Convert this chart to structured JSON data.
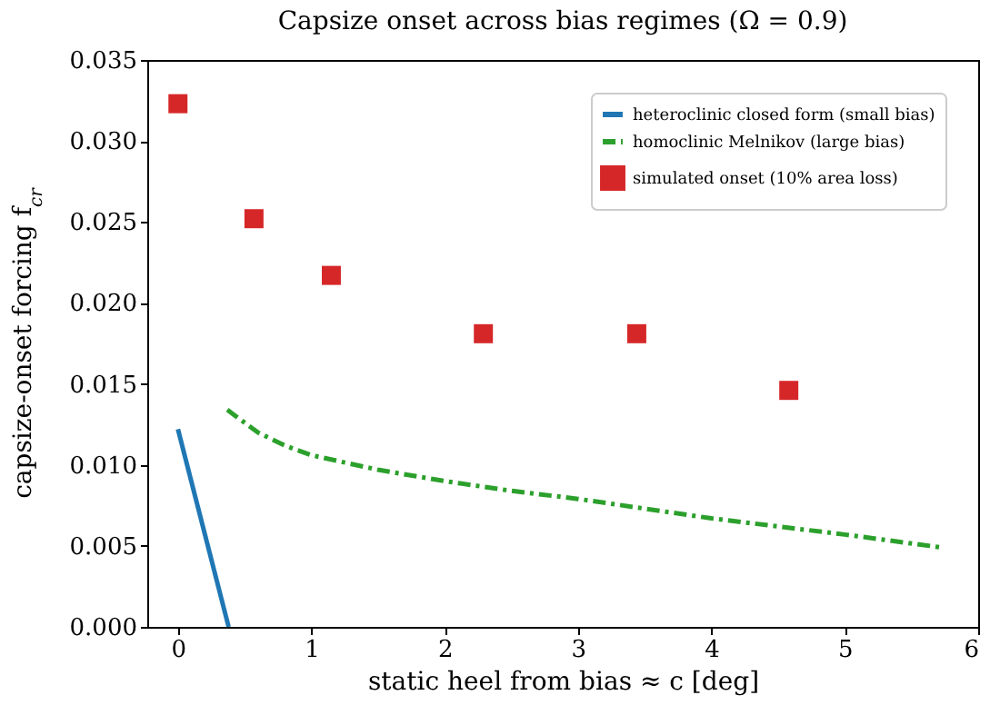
{
  "chart_data": {
    "type": "line",
    "title": "Capsize onset across bias regimes (Ω = 0.9)",
    "xlabel": "static heel from bias ≈ c [deg]",
    "ylabel": "capsize-onset forcing f$_{cr}$",
    "xlim": [
      -0.23,
      6
    ],
    "xticks": [
      0,
      1,
      2,
      3,
      4,
      5,
      6
    ],
    "ylim": [
      0,
      0.035
    ],
    "yticks": [
      {
        "value": 0,
        "label": "0.000"
      },
      0.005,
      {
        "value": 0.01,
        "label": "0.010"
      },
      0.015,
      {
        "value": 0.02,
        "label": "0.020"
      },
      0.025,
      {
        "value": 0.03,
        "label": "0.030"
      },
      0.035
    ],
    "grid": false,
    "legend": "top right",
    "series": [
      {
        "name": "heteroclinic closed form (small bias)",
        "color": "#1f77b4",
        "line_style": "solid",
        "x": [
          0,
          0.38
        ],
        "values": [
          0.0122,
          0
        ]
      },
      {
        "name": "homoclinic Melnikov (large bias)",
        "color": "#2ca02c",
        "line_style": "dashed",
        "x": [
          0.37,
          0.6,
          0.8,
          1,
          1.5,
          2,
          2.5,
          3,
          3.5,
          4,
          4.5,
          5,
          5.73
        ],
        "values": [
          0.0134,
          0.012,
          0.0112,
          0.0106,
          0.0097,
          0.009,
          0.0084,
          0.0079,
          0.0073,
          0.0067,
          0.0062,
          0.0057,
          0.0049
        ]
      },
      {
        "name": "simulated onset (10% area loss)",
        "type": "scatter",
        "color": "#d62728",
        "marker": "square",
        "x": [
          0,
          0.57,
          1.15,
          2.29,
          3.44,
          4.58
        ],
        "values": [
          0.0323,
          0.0252,
          0.0217,
          0.0181,
          0.0181,
          0.0146
        ]
      }
    ]
  }
}
